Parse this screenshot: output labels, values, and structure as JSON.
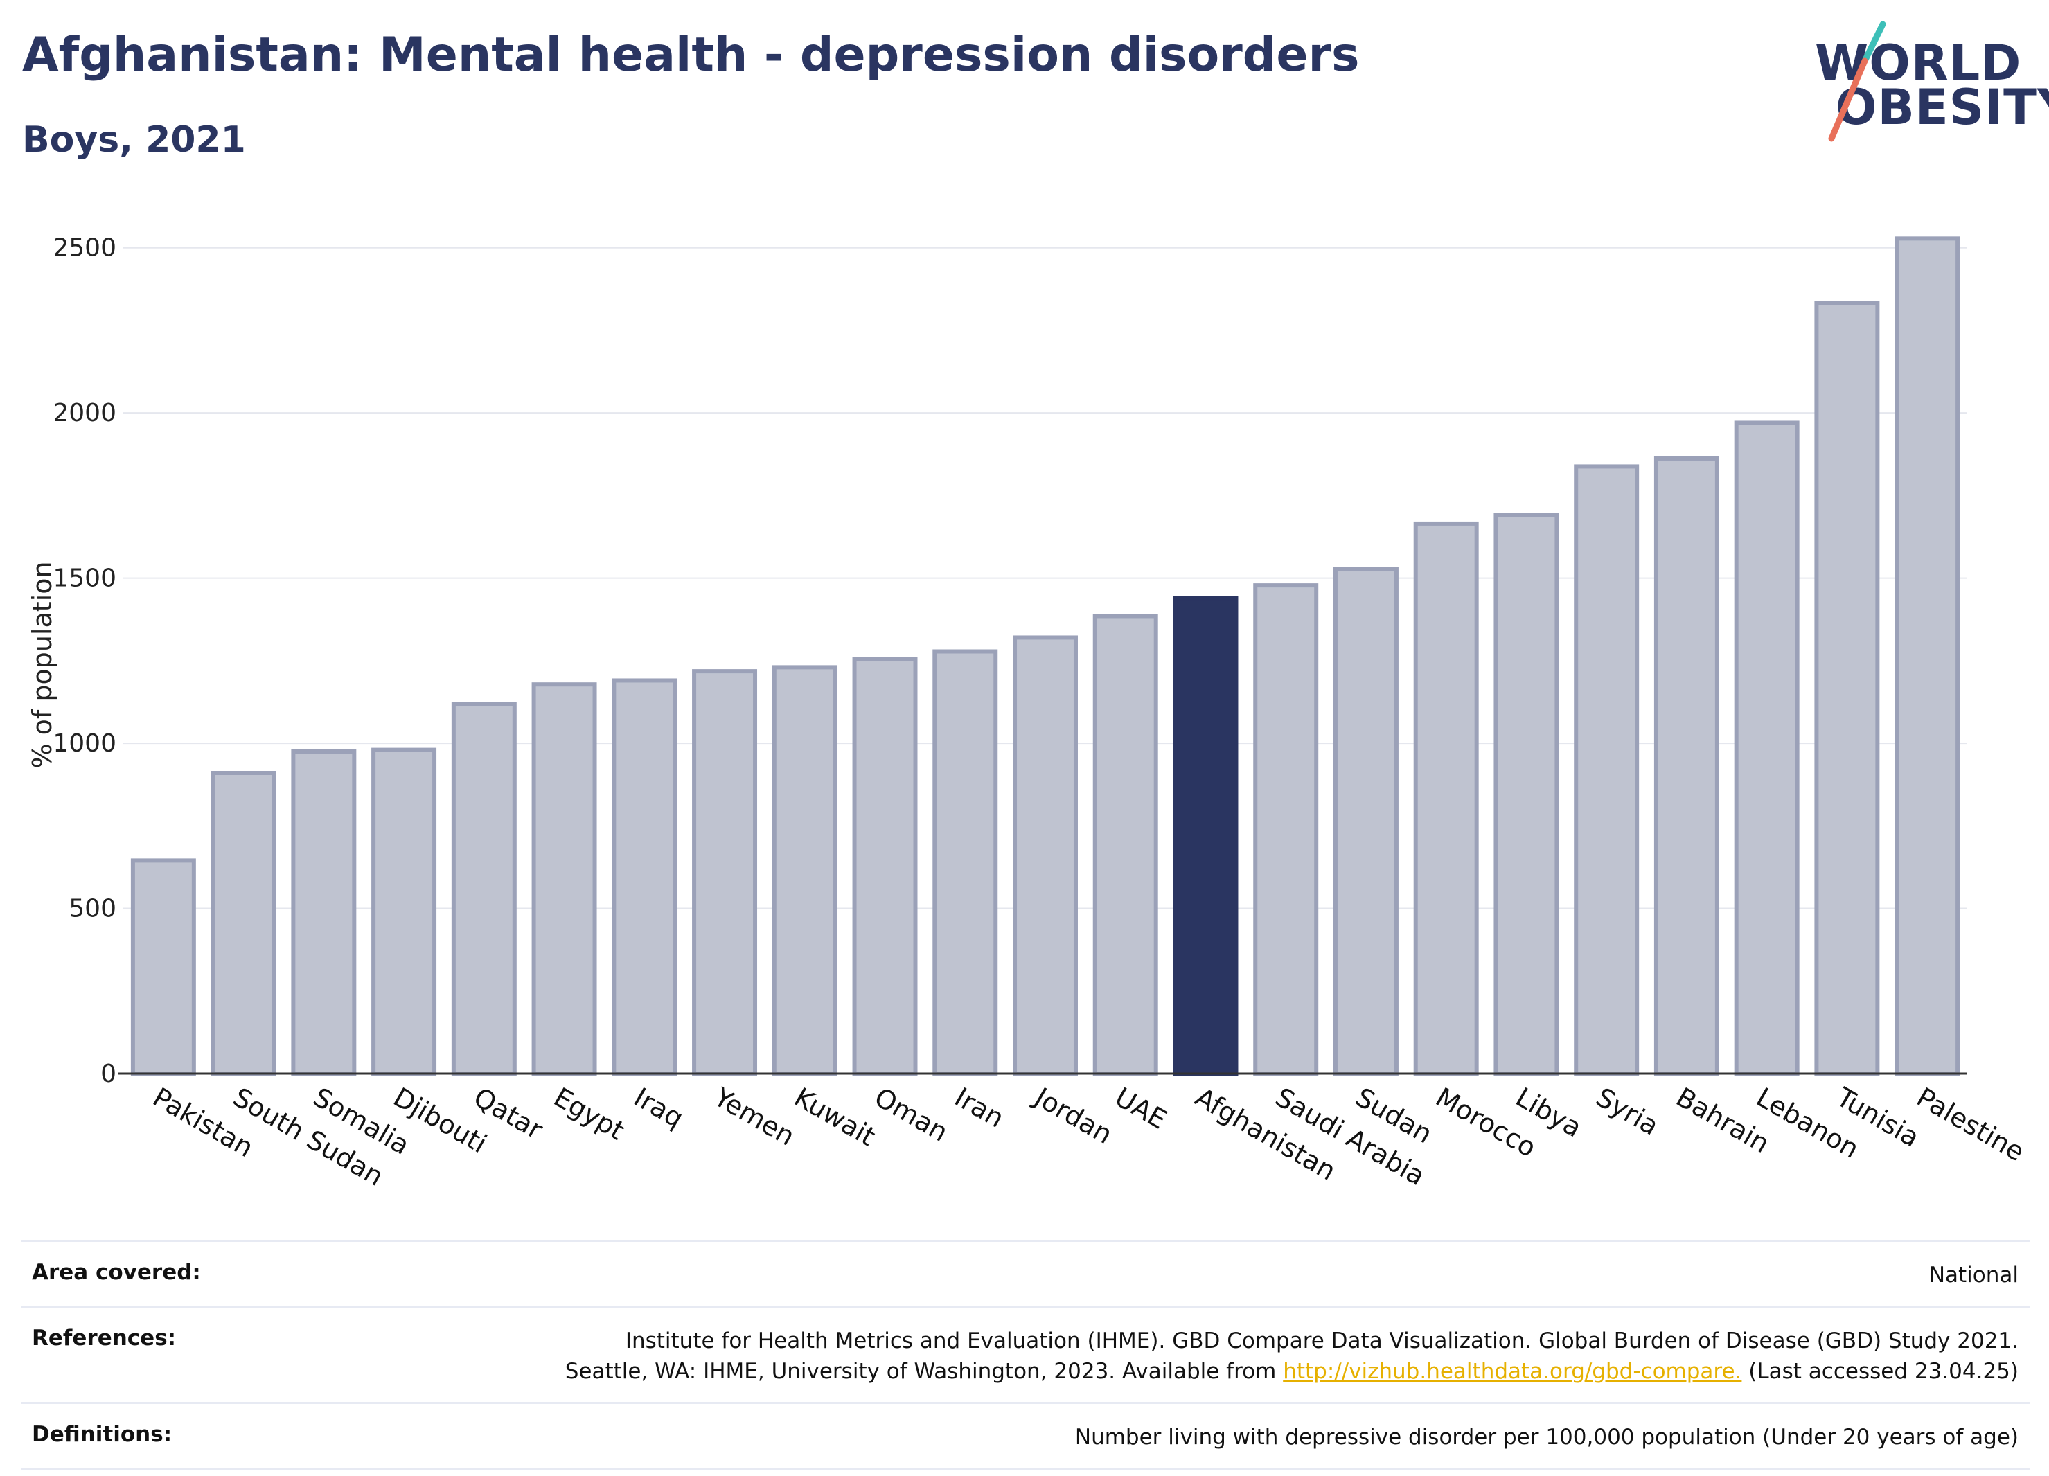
{
  "header": {
    "title": "Afghanistan: Mental health - depression disorders",
    "subtitle": "Boys, 2021"
  },
  "logo": {
    "line1": "WORLD",
    "line2": "OBESITY"
  },
  "colors": {
    "highlight": "#2a3561",
    "bar_fill": "#bfc3d0",
    "bar_stroke": "#9ba1b8",
    "grid": "#e5e7ee",
    "accent_teal": "#3dbfb8",
    "accent_coral": "#e8705a"
  },
  "chart_data": {
    "type": "bar",
    "title": "",
    "xlabel": "",
    "ylabel": "% of population",
    "ylim": [
      0,
      2600
    ],
    "yticks": [
      0,
      500,
      1000,
      1500,
      2000,
      2500
    ],
    "grid": true,
    "highlight": "Afghanistan",
    "categories": [
      "Pakistan",
      "South Sudan",
      "Somalia",
      "Djibouti",
      "Qatar",
      "Egypt",
      "Iraq",
      "Yemen",
      "Kuwait",
      "Oman",
      "Iran",
      "Jordan",
      "UAE",
      "Afghanistan",
      "Saudi Arabia",
      "Sudan",
      "Morocco",
      "Libya",
      "Syria",
      "Bahrain",
      "Lebanon",
      "Tunisia",
      "Palestine"
    ],
    "values": [
      645,
      910,
      975,
      980,
      1118,
      1178,
      1190,
      1218,
      1230,
      1255,
      1278,
      1320,
      1385,
      1440,
      1478,
      1528,
      1665,
      1690,
      1838,
      1862,
      1970,
      2332,
      2528
    ]
  },
  "info": {
    "area_label": "Area covered:",
    "area_value": "National",
    "references_label": "References:",
    "references_line1": "Institute for Health Metrics and Evaluation (IHME). GBD Compare Data Visualization. Global Burden of Disease (GBD) Study 2021.",
    "references_line2_pre": "Seattle, WA: IHME, University of Washington, 2023. Available from",
    "references_link": "http://vizhub.healthdata.org/gbd-compare.",
    "references_line2_post": "(Last accessed 23.04.25)",
    "definitions_label": "Definitions:",
    "definitions_value": "Number living with depressive disorder per 100,000 population (Under 20 years of age)"
  }
}
